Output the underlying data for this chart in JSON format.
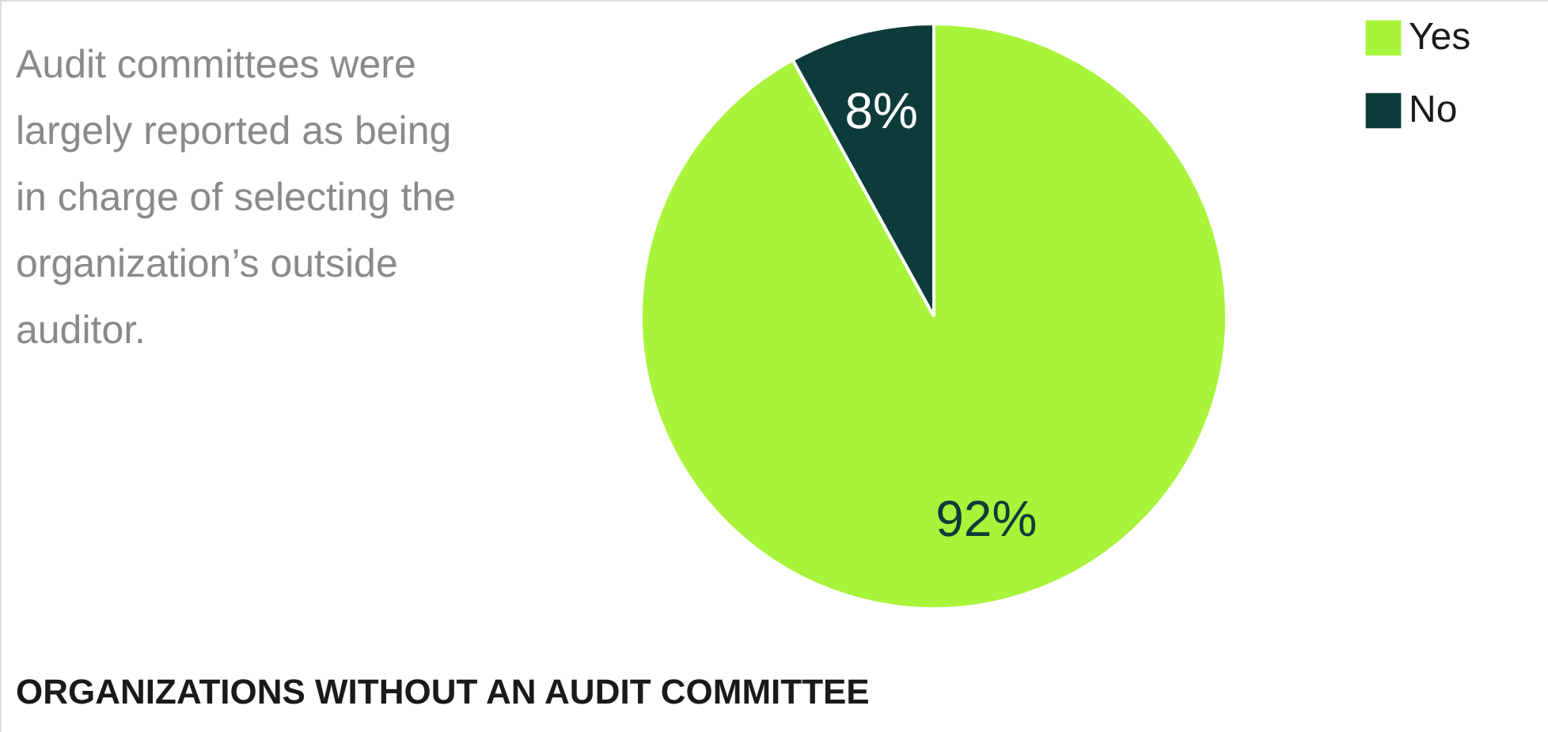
{
  "chart_data": {
    "type": "pie",
    "categories": [
      "Yes",
      "No"
    ],
    "values": [
      92,
      8
    ],
    "colors": [
      "#a8f43a",
      "#0d3b3a"
    ],
    "value_labels": [
      "92%",
      "8%"
    ],
    "legend": "top right",
    "annotations": [
      "Audit committees were largely reported as being in charge of selecting the organization’s outside auditor.",
      "ORGANIZATIONS WITHOUT AN AUDIT COMMITTEE"
    ]
  }
}
